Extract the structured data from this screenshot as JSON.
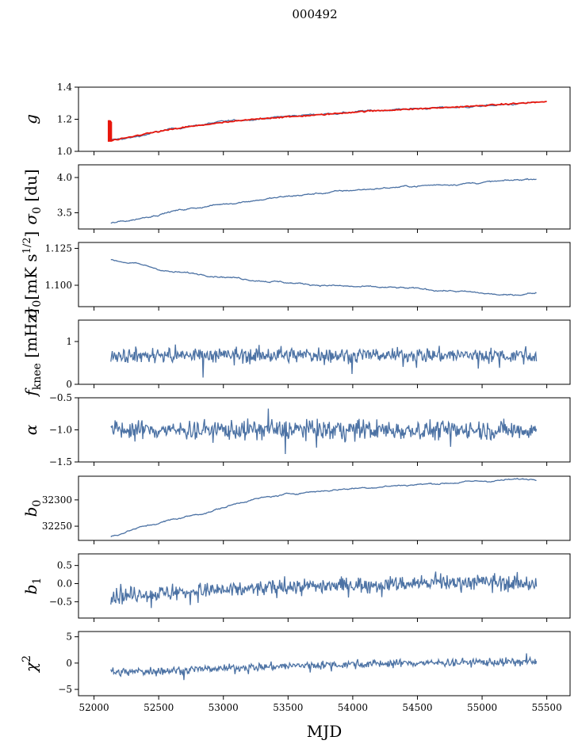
{
  "chart_data": {
    "type": "line",
    "title": "000492",
    "xlabel": "MJD",
    "xlim": [
      51880,
      55680
    ],
    "xticks": [
      52000,
      52500,
      53000,
      53500,
      54000,
      54500,
      55000,
      55500
    ],
    "x_start": 52130,
    "x_end": 55420,
    "colors": {
      "line": "#4c72a4",
      "fit": "#e8160c",
      "axis": "#000000"
    },
    "panels": [
      {
        "id": "g",
        "ylabel": "g",
        "ylim": [
          1.0,
          1.4
        ],
        "yticks": [
          1.0,
          1.2,
          1.4
        ],
        "ytick_labels": [
          "1.0",
          "1.2",
          "1.4"
        ],
        "show_xtick_labels": false,
        "series": [
          {
            "x": [
              52130,
              52300,
              52600,
              52900,
              53200,
              53600,
              54000,
              54400,
              54800,
              55200,
              55500
            ],
            "values": [
              1.07,
              1.085,
              1.14,
              1.175,
              1.2,
              1.225,
              1.245,
              1.265,
              1.275,
              1.29,
              1.31
            ]
          }
        ],
        "fit": {
          "x": [
            52110,
            52200,
            52400,
            52700,
            53000,
            53300,
            53700,
            54100,
            54500,
            54900,
            55300,
            55500
          ],
          "values": [
            1.065,
            1.075,
            1.11,
            1.15,
            1.18,
            1.205,
            1.225,
            1.25,
            1.265,
            1.28,
            1.3,
            1.31
          ],
          "spike": [
            1.06,
            1.2
          ]
        }
      },
      {
        "id": "sigma0_du",
        "ylabel": "σ₀ [du]",
        "ylim": [
          3.27,
          4.18
        ],
        "yticks": [
          3.5,
          4.0
        ],
        "ytick_labels": [
          "3.5",
          "4.0"
        ],
        "show_xtick_labels": false,
        "series": [
          {
            "x": [
              52130,
              52300,
              52600,
              52900,
              53200,
              53600,
              54000,
              54400,
              54800,
              55200,
              55420
            ],
            "values": [
              3.35,
              3.4,
              3.52,
              3.6,
              3.67,
              3.75,
              3.82,
              3.87,
              3.91,
              3.95,
              3.99
            ]
          }
        ]
      },
      {
        "id": "sigma0_mk",
        "ylabel": "σ₀[mK s^1/2]",
        "ylim": [
          1.0855,
          1.129
        ],
        "yticks": [
          1.1,
          1.125
        ],
        "ytick_labels": [
          "1.100",
          "1.125"
        ],
        "show_xtick_labels": false,
        "series": [
          {
            "x": [
              52130,
              52300,
              52600,
              52900,
              53200,
              53600,
              54000,
              54400,
              54800,
              55200,
              55420
            ],
            "values": [
              1.117,
              1.115,
              1.109,
              1.107,
              1.104,
              1.101,
              1.099,
              1.098,
              1.096,
              1.093,
              1.095
            ]
          }
        ]
      },
      {
        "id": "fknee",
        "ylabel": "f_knee [mHz]",
        "ylim": [
          0,
          1.5
        ],
        "yticks": [
          0,
          1
        ],
        "ytick_labels": [
          "0",
          "1"
        ],
        "show_xtick_labels": false,
        "series": [
          {
            "x": [
              52130,
              55420
            ],
            "values": [
              0.68,
              0.68
            ],
            "noise": 0.16
          }
        ]
      },
      {
        "id": "alpha",
        "ylabel": "α",
        "ylim": [
          -1.5,
          -0.5
        ],
        "yticks": [
          -1.5,
          -1.0,
          -0.5
        ],
        "ytick_labels": [
          "−1.5",
          "−1.0",
          "−0.5"
        ],
        "show_xtick_labels": false,
        "series": [
          {
            "x": [
              52130,
              55420
            ],
            "values": [
              -1.0,
              -1.0
            ],
            "noise": 0.14
          }
        ]
      },
      {
        "id": "b0",
        "ylabel": "b₀",
        "ylim": [
          32223,
          32345
        ],
        "yticks": [
          32250,
          32300
        ],
        "ytick_labels": [
          "32250",
          "32300"
        ],
        "show_xtick_labels": false,
        "series": [
          {
            "x": [
              52130,
              52300,
              52600,
              52900,
              53200,
              53600,
              54000,
              54400,
              54800,
              55200,
              55420
            ],
            "values": [
              32230,
              32244,
              32262,
              32278,
              32300,
              32314,
              32322,
              32328,
              32333,
              32338,
              32340
            ]
          }
        ]
      },
      {
        "id": "b1",
        "ylabel": "b₁",
        "ylim": [
          -0.95,
          0.82
        ],
        "yticks": [
          -0.5,
          0.0,
          0.5
        ],
        "ytick_labels": [
          "−0.5",
          "0.0",
          "0.5"
        ],
        "show_xtick_labels": false,
        "series": [
          {
            "x": [
              52130,
              52600,
              53200,
              53800,
              54400,
              55000,
              55420
            ],
            "values": [
              -0.35,
              -0.25,
              -0.15,
              -0.05,
              0.0,
              0.05,
              0.0
            ],
            "noise": 0.2
          }
        ]
      },
      {
        "id": "chi2",
        "ylabel": "χ²",
        "ylim": [
          -6.2,
          6.0
        ],
        "yticks": [
          -5,
          0,
          5
        ],
        "ytick_labels": [
          "−5",
          "0",
          "5"
        ],
        "show_xtick_labels": true,
        "series": [
          {
            "x": [
              52130,
              52600,
              53200,
              53800,
              54400,
              55000,
              55420
            ],
            "values": [
              -1.8,
              -1.4,
              -0.8,
              -0.3,
              0.0,
              0.2,
              0.2
            ],
            "noise": 0.7
          }
        ]
      }
    ]
  }
}
